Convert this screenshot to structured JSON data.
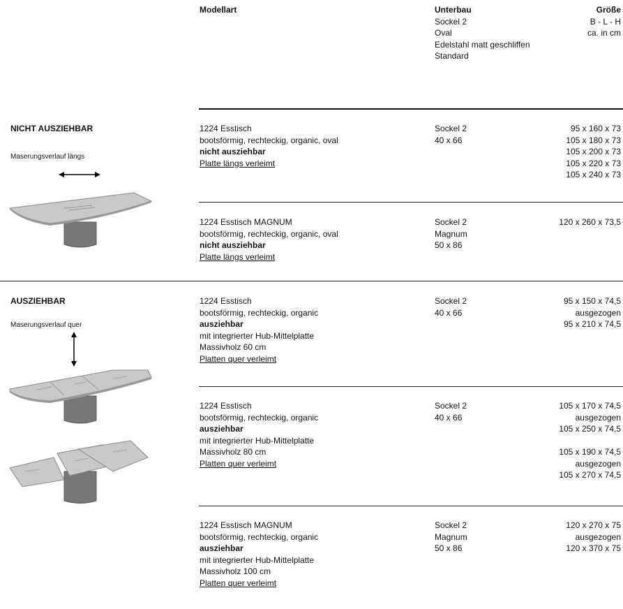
{
  "header": {
    "model_label": "Modellart",
    "base_label": "Unterbau",
    "base_lines": [
      "Sockel 2",
      "Oval",
      "Edelstahl matt geschliffen",
      "Standard"
    ],
    "size_label": "Größe",
    "size_lines": [
      "B - L - H",
      "ca. in cm"
    ]
  },
  "sections": [
    {
      "title": "NICHT AUSZIEHBAR",
      "grain": "Maserungsverlauf längs",
      "arrow_icon": "horizontal-double-arrow-icon",
      "image_icon": "table-fixed-illustration",
      "rows": [
        {
          "model": [
            "1224 Esstisch",
            "bootsförmig, rechteckig, organic, oval",
            "nicht ausziehbar",
            "Platte längs verleimt"
          ],
          "base": [
            "Sockel 2",
            "40 x 66"
          ],
          "sizes": [
            "95 x 160 x 73",
            "105 x 180 x 73",
            "105 x 200 x 73",
            "105 x 220 x 73",
            "105 x 240 x 73"
          ]
        },
        {
          "model": [
            "1224 Esstisch MAGNUM",
            "bootsförmig, rechteckig, organic, oval",
            "nicht ausziehbar",
            "Platte längs verleimt"
          ],
          "base": [
            "Sockel 2",
            "Magnum",
            "50 x 86"
          ],
          "sizes": [
            "120 x 260 x 73,5"
          ]
        }
      ]
    },
    {
      "title": "AUSZIEHBAR",
      "grain": "Maserungsverlauf quer",
      "arrow_icon": "vertical-double-arrow-icon",
      "image_icon": "table-extendable-illustration",
      "rows": [
        {
          "model": [
            "1224 Esstisch",
            "bootsförmig, rechteckig, organic",
            "ausziehbar",
            "mit integrierter Hub-Mittelplatte",
            "Massivholz 60 cm",
            "Platten quer verleimt"
          ],
          "base": [
            "Sockel 2",
            "40 x 66"
          ],
          "sizes": [
            "95 x 150 x 74,5",
            "ausgezogen",
            "95 x 210 x 74,5"
          ]
        },
        {
          "model": [
            "1224 Esstisch",
            "bootsförmig, rechteckig, organic",
            "ausziehbar",
            "mit integrierter Hub-Mittelplatte",
            "Massivholz 80 cm",
            "Platten quer verleimt"
          ],
          "base": [
            "Sockel 2",
            "40 x 66"
          ],
          "sizes": [
            "105 x 170 x 74,5",
            "ausgezogen",
            "105 x 250 x 74,5",
            "",
            "105 x 190 x 74,5",
            "ausgezogen",
            "105 x 270 x 74,5"
          ]
        },
        {
          "model": [
            "1224 Esstisch MAGNUM",
            "bootsförmig, rechteckig, organic",
            "ausziehbar",
            "mit integrierter Hub-Mittelplatte",
            "Massivholz 100 cm",
            "Platten quer verleimt"
          ],
          "base": [
            "Sockel 2",
            "Magnum",
            "50 x 86"
          ],
          "sizes": [
            "120 x 270 x 75",
            "ausgezogen",
            "120 x 370 x 75"
          ]
        }
      ]
    }
  ]
}
